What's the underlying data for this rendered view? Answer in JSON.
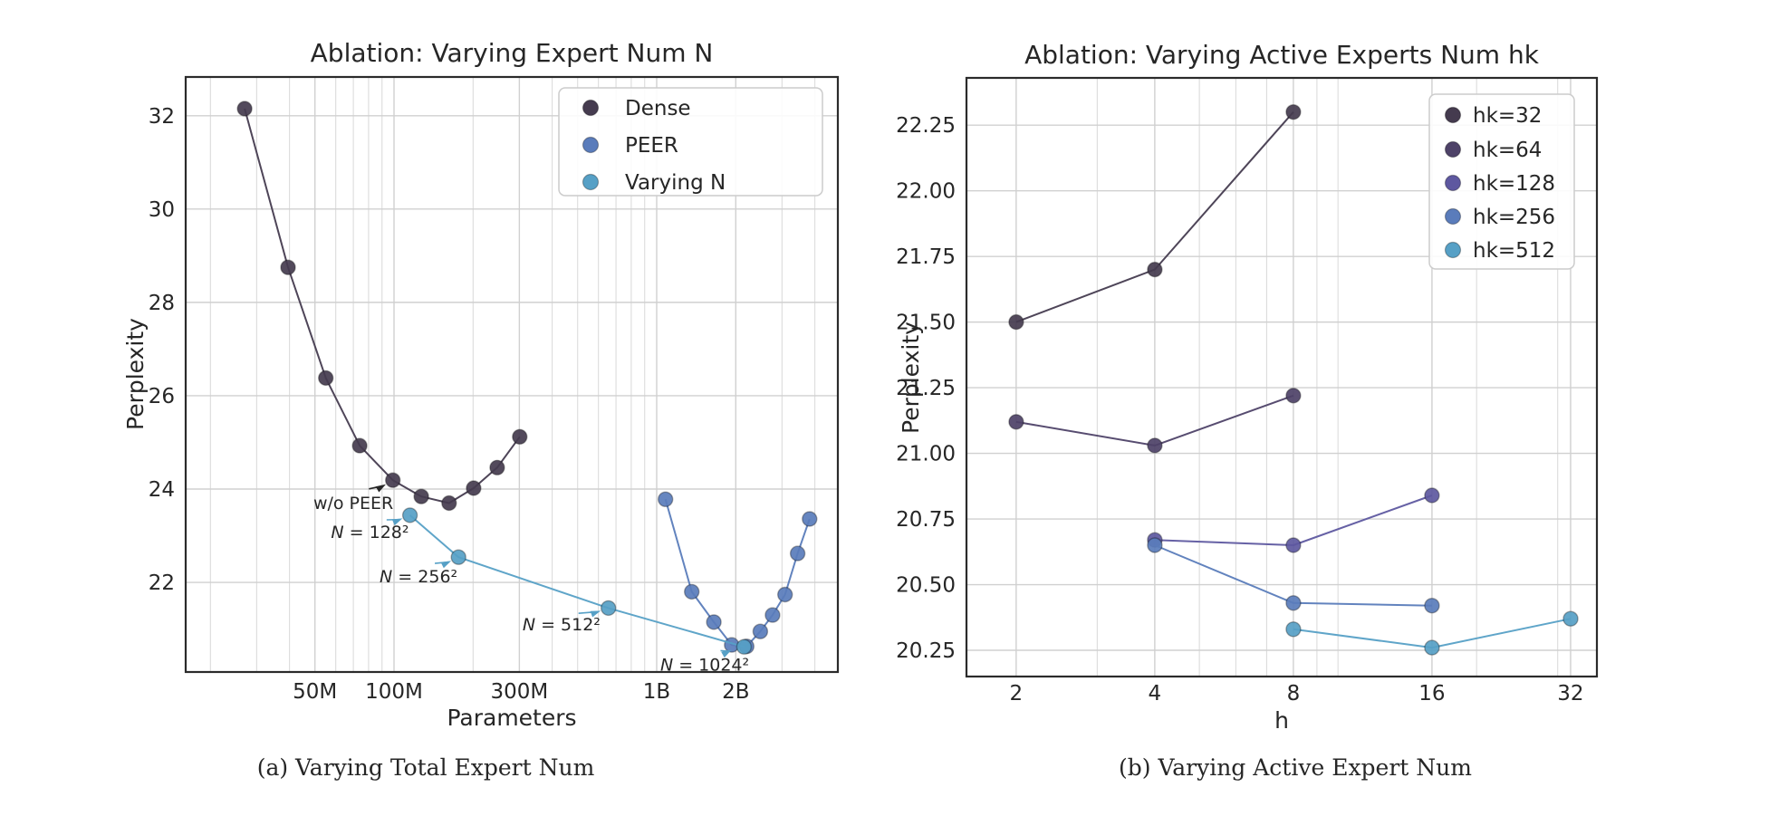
{
  "figure": {
    "background": "#ffffff"
  },
  "colors": {
    "dense": "#453b4f",
    "peer": "#5a7cbb",
    "varying_n": "#56a0c6",
    "hk32": "#453b4f",
    "hk64": "#4e4268",
    "hk128": "#5e58a0",
    "hk256": "#5a7cbb",
    "hk512": "#56a0c6",
    "grid_minor": "#dcdcdc",
    "grid_major": "#d0d0d0",
    "spine": "#2b2b2b",
    "text": "#262626",
    "legend_border": "#cccccc"
  },
  "chart_data": [
    {
      "type": "line",
      "title": "Ablation: Varying Expert Num N",
      "xlabel": "Parameters",
      "ylabel": "Perplexity",
      "caption": "(a) Varying Total Expert Num",
      "xscale": "log10",
      "x_unit": "millions of parameters",
      "xlim": [
        16.1,
        4894
      ],
      "ylim": [
        20.08,
        32.83
      ],
      "grid": true,
      "legend_position": "upper right",
      "xticks": [
        {
          "v": 50,
          "label": "50M"
        },
        {
          "v": 100,
          "label": "100M"
        },
        {
          "v": 300,
          "label": "300M"
        },
        {
          "v": 1000,
          "label": "1B"
        },
        {
          "v": 2000,
          "label": "2B"
        }
      ],
      "xminor": [
        20,
        30,
        40,
        60,
        70,
        80,
        90,
        200,
        400,
        500,
        600,
        700,
        800,
        900,
        3000,
        4000
      ],
      "yticks": [
        {
          "v": 22,
          "label": "22"
        },
        {
          "v": 24,
          "label": "24"
        },
        {
          "v": 26,
          "label": "26"
        },
        {
          "v": 28,
          "label": "28"
        },
        {
          "v": 30,
          "label": "30"
        },
        {
          "v": 32,
          "label": "32"
        }
      ],
      "series": [
        {
          "name": "Dense",
          "color_key": "dense",
          "x": [
            27,
            39.5,
            55,
            74,
            99,
            127,
            162,
            201,
            247,
            301
          ],
          "y": [
            32.15,
            28.75,
            26.38,
            24.93,
            24.19,
            23.84,
            23.7,
            24.02,
            24.46,
            25.12
          ]
        },
        {
          "name": "PEER",
          "color_key": "peer",
          "x": [
            1080,
            1360,
            1650,
            1930,
            2200,
            2480,
            2760,
            3080,
            3440,
            3820
          ],
          "y": [
            23.78,
            21.8,
            21.15,
            20.66,
            20.63,
            20.95,
            21.3,
            21.74,
            22.62,
            23.36
          ]
        },
        {
          "name": "Varying N",
          "color_key": "varying_n",
          "x": [
            115,
            176,
            655,
            2150
          ],
          "y": [
            23.44,
            22.54,
            21.45,
            20.62
          ]
        }
      ],
      "annotations": [
        {
          "text": "w/o PEER",
          "math": false,
          "tx": 70,
          "ty": 23.69,
          "ax": 99,
          "ay": 24.19,
          "arrow_color": "#262626"
        },
        {
          "text": "N = 128²",
          "math": true,
          "tx": 81,
          "ty": 23.07,
          "ax": 115,
          "ay": 23.44,
          "arrow_color": "#56a0c6"
        },
        {
          "text": "N = 256²",
          "math": true,
          "tx": 124,
          "ty": 22.12,
          "ax": 176,
          "ay": 22.54,
          "arrow_color": "#56a0c6"
        },
        {
          "text": "N = 512²",
          "math": true,
          "tx": 434,
          "ty": 21.09,
          "ax": 655,
          "ay": 21.45,
          "arrow_color": "#56a0c6"
        },
        {
          "text": "N = 1024²",
          "math": true,
          "tx": 1524,
          "ty": 20.23,
          "ax": 2050,
          "ay": 20.64,
          "arrow_color": "#56a0c6"
        }
      ]
    },
    {
      "type": "line",
      "title": "Ablation: Varying Active Experts Num hk",
      "xlabel": "h",
      "ylabel": "Perplexity",
      "caption": "(b) Varying Active Expert Num",
      "xscale": "log2",
      "x_unit": "active experts h",
      "xlim": [
        1.56,
        36.5
      ],
      "ylim": [
        20.15,
        22.43
      ],
      "grid": true,
      "legend_position": "upper right",
      "xticks": [
        {
          "v": 2,
          "label": "2"
        },
        {
          "v": 4,
          "label": "4"
        },
        {
          "v": 8,
          "label": "8"
        },
        {
          "v": 16,
          "label": "16"
        },
        {
          "v": 32,
          "label": "32"
        }
      ],
      "xminor": [
        3,
        5,
        6,
        7,
        9,
        10,
        20,
        30
      ],
      "yticks": [
        {
          "v": 20.25,
          "label": "20.25"
        },
        {
          "v": 20.5,
          "label": "20.50"
        },
        {
          "v": 20.75,
          "label": "20.75"
        },
        {
          "v": 21.0,
          "label": "21.00"
        },
        {
          "v": 21.25,
          "label": "21.25"
        },
        {
          "v": 21.5,
          "label": "21.50"
        },
        {
          "v": 21.75,
          "label": "21.75"
        },
        {
          "v": 22.0,
          "label": "22.00"
        },
        {
          "v": 22.25,
          "label": "22.25"
        }
      ],
      "series": [
        {
          "name": "hk=32",
          "color_key": "hk32",
          "x": [
            2,
            4,
            8
          ],
          "y": [
            21.5,
            21.7,
            22.3
          ]
        },
        {
          "name": "hk=64",
          "color_key": "hk64",
          "x": [
            2,
            4,
            8
          ],
          "y": [
            21.12,
            21.03,
            21.22
          ]
        },
        {
          "name": "hk=128",
          "color_key": "hk128",
          "x": [
            4,
            8,
            16
          ],
          "y": [
            20.67,
            20.65,
            20.84
          ]
        },
        {
          "name": "hk=256",
          "color_key": "hk256",
          "x": [
            4,
            8,
            16
          ],
          "y": [
            20.65,
            20.43,
            20.42
          ]
        },
        {
          "name": "hk=512",
          "color_key": "hk512",
          "x": [
            8,
            16,
            32
          ],
          "y": [
            20.33,
            20.26,
            20.37
          ]
        }
      ],
      "annotations": []
    }
  ]
}
